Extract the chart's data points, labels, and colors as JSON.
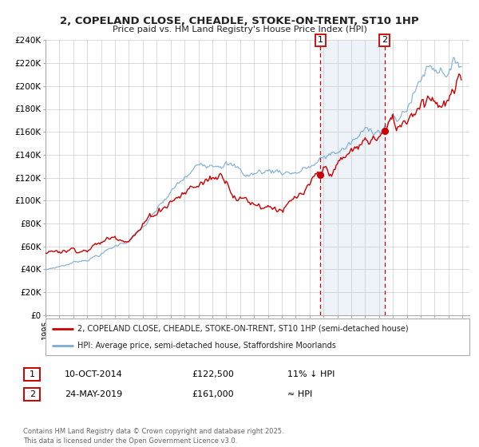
{
  "title": "2, COPELAND CLOSE, CHEADLE, STOKE-ON-TRENT, ST10 1HP",
  "subtitle": "Price paid vs. HM Land Registry's House Price Index (HPI)",
  "ylim": [
    0,
    240000
  ],
  "xlim_start": 1995.0,
  "xlim_end": 2025.5,
  "yticks": [
    0,
    20000,
    40000,
    60000,
    80000,
    100000,
    120000,
    140000,
    160000,
    180000,
    200000,
    220000,
    240000
  ],
  "ytick_labels": [
    "£0",
    "£20K",
    "£40K",
    "£60K",
    "£80K",
    "£100K",
    "£120K",
    "£140K",
    "£160K",
    "£180K",
    "£200K",
    "£220K",
    "£240K"
  ],
  "xticks": [
    1995,
    1996,
    1997,
    1998,
    1999,
    2000,
    2001,
    2002,
    2003,
    2004,
    2005,
    2006,
    2007,
    2008,
    2009,
    2010,
    2011,
    2012,
    2013,
    2014,
    2015,
    2016,
    2017,
    2018,
    2019,
    2020,
    2021,
    2022,
    2023,
    2024,
    2025
  ],
  "red_line_color": "#cc0000",
  "blue_line_color": "#7aacd4",
  "marker_color": "#cc0000",
  "vline_color": "#cc0000",
  "sale1_x": 2014.78,
  "sale1_y": 122500,
  "sale2_x": 2019.39,
  "sale2_y": 161000,
  "legend1_label": "2, COPELAND CLOSE, CHEADLE, STOKE-ON-TRENT, ST10 1HP (semi-detached house)",
  "legend2_label": "HPI: Average price, semi-detached house, Staffordshire Moorlands",
  "table_row1": [
    "1",
    "10-OCT-2014",
    "£122,500",
    "11% ↓ HPI"
  ],
  "table_row2": [
    "2",
    "24-MAY-2019",
    "£161,000",
    "≈ HPI"
  ],
  "footer": "Contains HM Land Registry data © Crown copyright and database right 2025.\nThis data is licensed under the Open Government Licence v3.0.",
  "bg_color": "#ffffff",
  "grid_color": "#cccccc",
  "highlight_color": "#dce8f5"
}
